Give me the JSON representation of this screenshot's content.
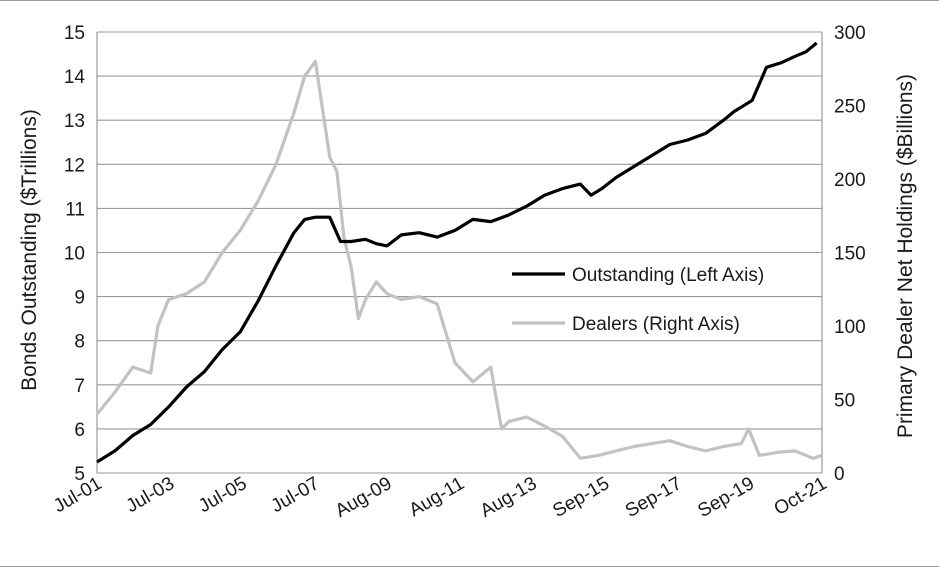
{
  "chart_data": {
    "type": "line",
    "title": "",
    "xlabel": "",
    "ylabel_left": "Bonds Outstanding ($Trillions)",
    "ylabel_right": "Primary Dealer Net Holdings ($Billions)",
    "x_tick_labels": [
      "Jul-01",
      "Jul-03",
      "Jul-05",
      "Jul-07",
      "Aug-09",
      "Aug-11",
      "Aug-13",
      "Sep-15",
      "Sep-17",
      "Sep-19",
      "Oct-21"
    ],
    "y_left": {
      "min": 5,
      "max": 15,
      "ticks": [
        5,
        6,
        7,
        8,
        9,
        10,
        11,
        12,
        13,
        14,
        15
      ]
    },
    "y_right": {
      "min": 0,
      "max": 300,
      "ticks": [
        0,
        50,
        100,
        150,
        200,
        250,
        300
      ]
    },
    "grid": "horizontal",
    "legend_position": "right-center",
    "colors": {
      "outstanding": "#000000",
      "dealers": "#c2c2c2",
      "grid": "#9a9a9a"
    },
    "series": [
      {
        "name": "Outstanding (Left Axis)",
        "axis": "left",
        "x": [
          2001.5,
          2002.0,
          2002.5,
          2003.0,
          2003.5,
          2004.0,
          2004.5,
          2005.0,
          2005.5,
          2006.0,
          2006.5,
          2007.0,
          2007.3,
          2007.6,
          2008.0,
          2008.3,
          2008.6,
          2009.0,
          2009.3,
          2009.6,
          2010.0,
          2010.5,
          2011.0,
          2011.5,
          2012.0,
          2012.5,
          2013.0,
          2013.5,
          2014.0,
          2014.5,
          2015.0,
          2015.3,
          2015.6,
          2016.0,
          2016.5,
          2017.0,
          2017.5,
          2018.0,
          2018.5,
          2019.0,
          2019.3,
          2019.6,
          2019.8,
          2020.2,
          2020.6,
          2021.0,
          2021.3,
          2021.6
        ],
        "y": [
          5.25,
          5.5,
          5.85,
          6.1,
          6.5,
          6.95,
          7.3,
          7.8,
          8.2,
          8.9,
          9.7,
          10.45,
          10.75,
          10.8,
          10.8,
          10.25,
          10.25,
          10.3,
          10.2,
          10.15,
          10.4,
          10.45,
          10.35,
          10.5,
          10.75,
          10.7,
          10.85,
          11.05,
          11.3,
          11.45,
          11.55,
          11.3,
          11.45,
          11.7,
          11.95,
          12.2,
          12.45,
          12.55,
          12.7,
          13.0,
          13.2,
          13.35,
          13.45,
          14.2,
          14.3,
          14.45,
          14.55,
          14.75
        ]
      },
      {
        "name": "Dealers (Right Axis)",
        "axis": "right",
        "x": [
          2001.5,
          2002.0,
          2002.5,
          2003.0,
          2003.2,
          2003.5,
          2004.0,
          2004.5,
          2005.0,
          2005.5,
          2006.0,
          2006.5,
          2007.0,
          2007.3,
          2007.6,
          2008.0,
          2008.2,
          2008.4,
          2008.6,
          2008.8,
          2009.0,
          2009.3,
          2009.6,
          2010.0,
          2010.5,
          2011.0,
          2011.5,
          2012.0,
          2012.5,
          2012.8,
          2013.0,
          2013.5,
          2014.0,
          2014.5,
          2015.0,
          2015.5,
          2016.0,
          2016.5,
          2017.0,
          2017.5,
          2018.0,
          2018.5,
          2019.0,
          2019.5,
          2019.7,
          2020.0,
          2020.5,
          2021.0,
          2021.5,
          2021.75
        ],
        "y": [
          40,
          55,
          72,
          68,
          100,
          118,
          122,
          130,
          150,
          165,
          185,
          210,
          245,
          270,
          280,
          215,
          205,
          160,
          140,
          105,
          118,
          130,
          122,
          118,
          120,
          115,
          75,
          62,
          72,
          30,
          35,
          38,
          32,
          25,
          10,
          12,
          15,
          18,
          20,
          22,
          18,
          15,
          18,
          20,
          30,
          12,
          14,
          15,
          10,
          12
        ]
      }
    ]
  }
}
